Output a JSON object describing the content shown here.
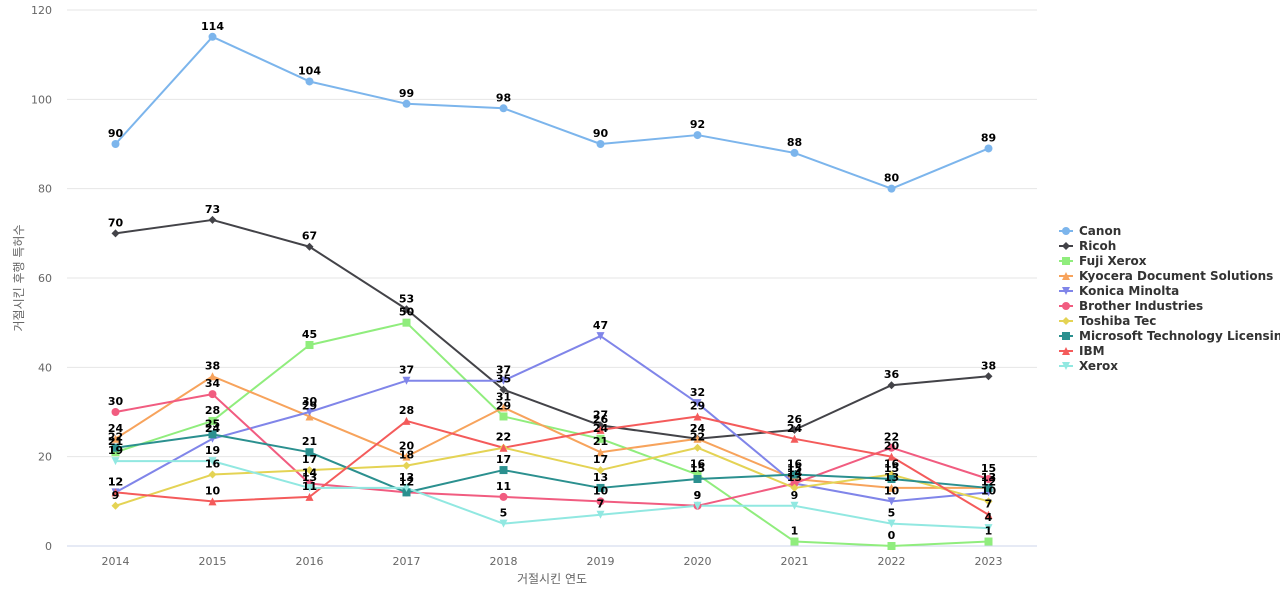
{
  "chart_data": {
    "type": "line",
    "title": "",
    "xlabel": "거절시킨 연도",
    "ylabel": "거절시킨 후행 특허수",
    "ylim": [
      0,
      120
    ],
    "yticks": [
      0,
      20,
      40,
      60,
      80,
      100,
      120
    ],
    "grid": true,
    "legend_position": "right",
    "categories": [
      "2014",
      "2015",
      "2016",
      "2017",
      "2018",
      "2019",
      "2020",
      "2021",
      "2022",
      "2023"
    ],
    "series": [
      {
        "name": "Canon",
        "color": "#7cb5ec",
        "marker": "circle",
        "values": [
          90,
          114,
          104,
          99,
          98,
          90,
          92,
          88,
          80,
          89
        ]
      },
      {
        "name": "Ricoh",
        "color": "#434348",
        "marker": "diamond",
        "values": [
          70,
          73,
          67,
          53,
          35,
          27,
          24,
          26,
          36,
          38
        ]
      },
      {
        "name": "Fuji Xerox",
        "color": "#90ed7d",
        "marker": "square",
        "values": [
          21,
          28,
          45,
          50,
          29,
          24,
          16,
          1,
          0,
          1
        ]
      },
      {
        "name": "Kyocera Document Solutions",
        "color": "#f7a35c",
        "marker": "triangle",
        "values": [
          24,
          38,
          29,
          20,
          31,
          21,
          24,
          15,
          13,
          13
        ]
      },
      {
        "name": "Konica Minolta",
        "color": "#8085e9",
        "marker": "triangle-down",
        "values": [
          12,
          24,
          30,
          37,
          37,
          47,
          32,
          14,
          10,
          12
        ]
      },
      {
        "name": "Brother Industries",
        "color": "#f15c80",
        "marker": "circle",
        "values": [
          30,
          34,
          14,
          12,
          11,
          10,
          9,
          14,
          22,
          15
        ]
      },
      {
        "name": "Toshiba Tec",
        "color": "#e4d354",
        "marker": "diamond",
        "values": [
          9,
          16,
          17,
          18,
          22,
          17,
          22,
          13,
          16,
          10
        ]
      },
      {
        "name": "Microsoft Technology Licensing",
        "color": "#2b908f",
        "marker": "square",
        "values": [
          22,
          25,
          21,
          12,
          17,
          13,
          15,
          16,
          15,
          13
        ]
      },
      {
        "name": "IBM",
        "color": "#f45b5b",
        "marker": "triangle",
        "values": [
          12,
          10,
          11,
          28,
          22,
          26,
          29,
          24,
          20,
          7
        ]
      },
      {
        "name": "Xerox",
        "color": "#91e8e1",
        "marker": "triangle-down",
        "values": [
          19,
          19,
          13,
          13,
          5,
          7,
          9,
          9,
          5,
          4
        ]
      }
    ]
  }
}
